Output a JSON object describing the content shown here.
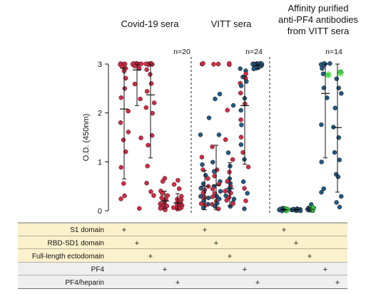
{
  "chart_data": {
    "type": "scatter",
    "ylabel": "O.D. (450nm)",
    "ylim": [
      0,
      3
    ],
    "yticks": [
      0,
      1,
      2,
      3
    ],
    "colors": {
      "red": "#d42a45",
      "blue": "#1f5a84",
      "green": "#3fd63a",
      "row_band": "#fbf1cc",
      "row_plain": "#efefef"
    },
    "groups": [
      {
        "title": [
          "Covid-19 sera"
        ],
        "n_label": "n=20",
        "columns": [
          {
            "color": "red",
            "mean": 2.08,
            "sd_low": 0.65,
            "sd_high": 2.92,
            "values": [
              3,
              3,
              3,
              3,
              3,
              2.95,
              2.9,
              2.85,
              2.7,
              2.5,
              2.3,
              2.05,
              1.8,
              1.6,
              1.45,
              1.2,
              0.9,
              0.55,
              0.3,
              0.25
            ]
          },
          {
            "color": "red",
            "mean": 2.88,
            "sd_low": 2.15,
            "sd_high": 3.0,
            "values": [
              3,
              3,
              3,
              3,
              3,
              3,
              3,
              3,
              3,
              3,
              3,
              3,
              3,
              3,
              2.95,
              2.9,
              2.6,
              2.3,
              1.5,
              0.05
            ]
          },
          {
            "color": "red",
            "mean": 2.37,
            "sd_low": 1.08,
            "sd_high": 3.0,
            "values": [
              3,
              3,
              3,
              3,
              3,
              3,
              3,
              2.9,
              2.8,
              2.6,
              2.45,
              2.2,
              2.1,
              2.0,
              1.55,
              1.35,
              0.9,
              0.55,
              0.4,
              0.3
            ]
          },
          {
            "color": "red",
            "mean": 0.2,
            "sd_low": 0.05,
            "sd_high": 0.4,
            "values": [
              0.65,
              0.6,
              0.4,
              0.35,
              0.3,
              0.25,
              0.22,
              0.2,
              0.18,
              0.15,
              0.14,
              0.12,
              0.1,
              0.1,
              0.08,
              0.07,
              0.06,
              0.05,
              0.04,
              0.03
            ]
          },
          {
            "color": "red",
            "mean": 0.16,
            "sd_low": 0.03,
            "sd_high": 0.35,
            "values": [
              0.62,
              0.55,
              0.45,
              0.3,
              0.25,
              0.22,
              0.2,
              0.18,
              0.15,
              0.13,
              0.12,
              0.11,
              0.1,
              0.09,
              0.08,
              0.07,
              0.06,
              0.05,
              0.04,
              0.03
            ]
          }
        ]
      },
      {
        "title": [
          "VITT sera"
        ],
        "n_label": "n=24",
        "columns": [
          {
            "color": "mixed",
            "mean": 0.5,
            "sd_low": 0.02,
            "sd_high": 0.82,
            "values": [
              3,
              3,
              1.9,
              1.55,
              1.1,
              0.95,
              0.85,
              0.72,
              0.65,
              0.55,
              0.5,
              0.45,
              0.42,
              0.38,
              0.35,
              0.3,
              0.28,
              0.25,
              0.22,
              0.18,
              0.15,
              0.12,
              0.1,
              0.05
            ],
            "colors": [
              "red",
              "red",
              "blue",
              "blue",
              "red",
              "blue",
              "red",
              "blue",
              "red",
              "blue",
              "red",
              "blue",
              "red",
              "blue",
              "red",
              "blue",
              "red",
              "blue",
              "red",
              "blue",
              "red",
              "blue",
              "red",
              "blue"
            ]
          },
          {
            "color": "mixed",
            "mean": 0.52,
            "sd_low": 0.02,
            "sd_high": 1.34,
            "values": [
              3,
              3,
              2.4,
              2.3,
              1.55,
              1.3,
              1.0,
              0.85,
              0.8,
              0.7,
              0.6,
              0.55,
              0.5,
              0.45,
              0.4,
              0.35,
              0.3,
              0.28,
              0.25,
              0.2,
              0.15,
              0.12,
              0.1,
              0.05
            ],
            "colors": [
              "red",
              "red",
              "blue",
              "blue",
              "blue",
              "red",
              "blue",
              "red",
              "blue",
              "red",
              "blue",
              "red",
              "blue",
              "red",
              "blue",
              "red",
              "blue",
              "red",
              "blue",
              "red",
              "blue",
              "red",
              "blue",
              "red"
            ]
          },
          {
            "color": "mixed",
            "mean": 0.45,
            "sd_low": 0.1,
            "sd_high": 0.98,
            "values": [
              3,
              3,
              2.15,
              2.05,
              1.45,
              1.2,
              1.05,
              0.9,
              0.78,
              0.65,
              0.6,
              0.55,
              0.5,
              0.45,
              0.4,
              0.38,
              0.35,
              0.3,
              0.28,
              0.25,
              0.2,
              0.18,
              0.15,
              0.1
            ],
            "colors": [
              "red",
              "red",
              "blue",
              "red",
              "red",
              "blue",
              "red",
              "blue",
              "red",
              "blue",
              "red",
              "blue",
              "red",
              "blue",
              "red",
              "blue",
              "red",
              "blue",
              "red",
              "blue",
              "red",
              "blue",
              "red",
              "blue"
            ]
          },
          {
            "color": "mixed",
            "mean": 2.15,
            "sd_low": 0.95,
            "sd_high": 2.75,
            "values": [
              2.9,
              2.85,
              2.8,
              2.75,
              2.7,
              2.65,
              2.6,
              2.55,
              2.4,
              2.3,
              2.2,
              2.05,
              1.85,
              1.75,
              1.5,
              1.35,
              1.2,
              1.05,
              0.9,
              0.6,
              0.45,
              0.35,
              0.2,
              0.05
            ],
            "colors": [
              "blue",
              "blue",
              "red",
              "blue",
              "red",
              "blue",
              "red",
              "blue",
              "red",
              "blue",
              "red",
              "blue",
              "red",
              "blue",
              "red",
              "blue",
              "red",
              "blue",
              "red",
              "blue",
              "red",
              "blue",
              "red",
              "blue"
            ]
          },
          {
            "color": "mixed",
            "mean": 2.97,
            "sd_low": 2.9,
            "sd_high": 3.0,
            "values": [
              3,
              3,
              3,
              3,
              3,
              3,
              3,
              3,
              3,
              3,
              3,
              3,
              3,
              3,
              3,
              3,
              2.98,
              2.97,
              2.96,
              2.95,
              2.94,
              2.93,
              2.92,
              2.9
            ],
            "colors": [
              "blue",
              "blue",
              "blue",
              "blue",
              "blue",
              "blue",
              "blue",
              "blue",
              "blue",
              "blue",
              "blue",
              "blue",
              "blue",
              "blue",
              "blue",
              "blue",
              "blue",
              "blue",
              "blue",
              "blue",
              "blue",
              "blue",
              "blue",
              "blue"
            ]
          }
        ]
      },
      {
        "title": [
          "Affinity purified",
          "anti-PF4 antibodies",
          "from VITT sera"
        ],
        "n_label": "n=14",
        "columns": [
          {
            "color": "blue",
            "mean": 0.02,
            "sd_low": 0.0,
            "sd_high": 0.04,
            "values": [
              0.04,
              0.04,
              0.03,
              0.03,
              0.03,
              0.02,
              0.02,
              0.02,
              0.02,
              0.01,
              0.01,
              0.01,
              0.01,
              0.01
            ],
            "green": [
              0.02
            ]
          },
          {
            "color": "blue",
            "mean": 0.02,
            "sd_low": 0.0,
            "sd_high": 0.03,
            "values": [
              0.03,
              0.03,
              0.03,
              0.02,
              0.02,
              0.02,
              0.02,
              0.02,
              0.01,
              0.01,
              0.01,
              0.01,
              0.01,
              0.01
            ],
            "green": []
          },
          {
            "color": "blue",
            "mean": 0.03,
            "sd_low": 0.0,
            "sd_high": 0.06,
            "values": [
              0.12,
              0.06,
              0.05,
              0.04,
              0.04,
              0.03,
              0.03,
              0.03,
              0.02,
              0.02,
              0.02,
              0.02,
              0.01,
              0.01
            ],
            "green": [
              0.04
            ]
          },
          {
            "color": "blue",
            "mean": 2.4,
            "sd_low": 1.08,
            "sd_high": 3.0,
            "values": [
              3,
              3,
              3,
              3,
              3,
              2.95,
              2.9,
              2.8,
              2.5,
              2.3,
              1.75,
              1.0,
              0.45,
              0.38
            ],
            "green": [
              2.78
            ]
          },
          {
            "color": "blue",
            "mean": 1.7,
            "sd_low": 0.38,
            "sd_high": 3.0,
            "values": [
              2.85,
              2.7,
              2.5,
              2.4,
              2.1,
              1.7,
              1.5,
              1.2,
              1.05,
              0.75,
              0.7,
              0.3,
              0.18,
              0.08
            ],
            "green": [
              2.82
            ]
          }
        ]
      }
    ],
    "rows": [
      {
        "label": "S1 domain",
        "col_index": 0,
        "band": true
      },
      {
        "label": "RBD-SD1 domain",
        "col_index": 1,
        "band": true
      },
      {
        "label": "Full-length ectodomain",
        "col_index": 2,
        "band": true
      },
      {
        "label": "PF4",
        "col_index": 3,
        "band": false
      },
      {
        "label": "PF4/heparin",
        "col_index": 4,
        "band": false
      }
    ],
    "plus_sign": "+"
  }
}
